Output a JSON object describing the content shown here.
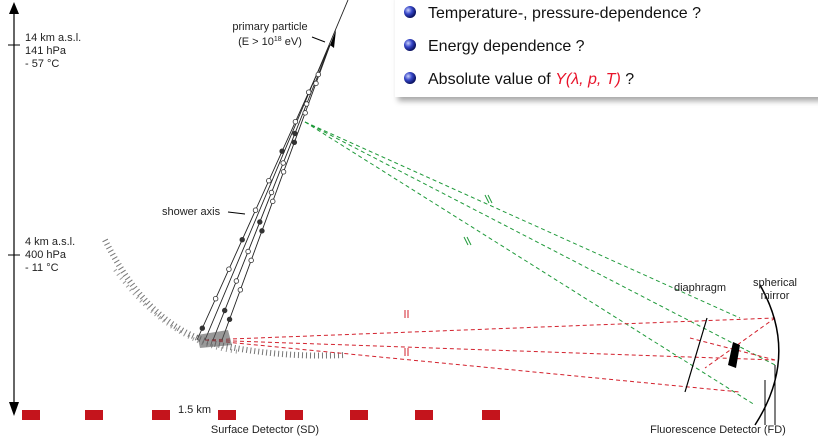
{
  "altitude_labels": [
    {
      "lines": [
        "14 km a.s.l.",
        "141 hPa",
        "- 57 °C"
      ]
    },
    {
      "lines": [
        "4 km a.s.l.",
        "400 hPa",
        "- 11 °C"
      ]
    }
  ],
  "primary_particle": {
    "label": "primary particle",
    "energy_prefix": "(E > 10",
    "energy_exponent": "18",
    "energy_suffix": " eV)"
  },
  "shower_axis": "shower axis",
  "spacing": "1.5 km",
  "surface_detector": "Surface Detector (SD)",
  "fluorescence_detector": "Fluorescence Detector (FD)",
  "diaphragm": "diaphragm",
  "mirror": [
    "spherical",
    "mirror"
  ],
  "bullets": [
    {
      "text": "Temperature-, pressure-dependence ?"
    },
    {
      "text": "Energy dependence ?"
    },
    {
      "prefix": "Absolute value of ",
      "math": "Y(λ, p, T)",
      "suffix": " ?"
    }
  ]
}
